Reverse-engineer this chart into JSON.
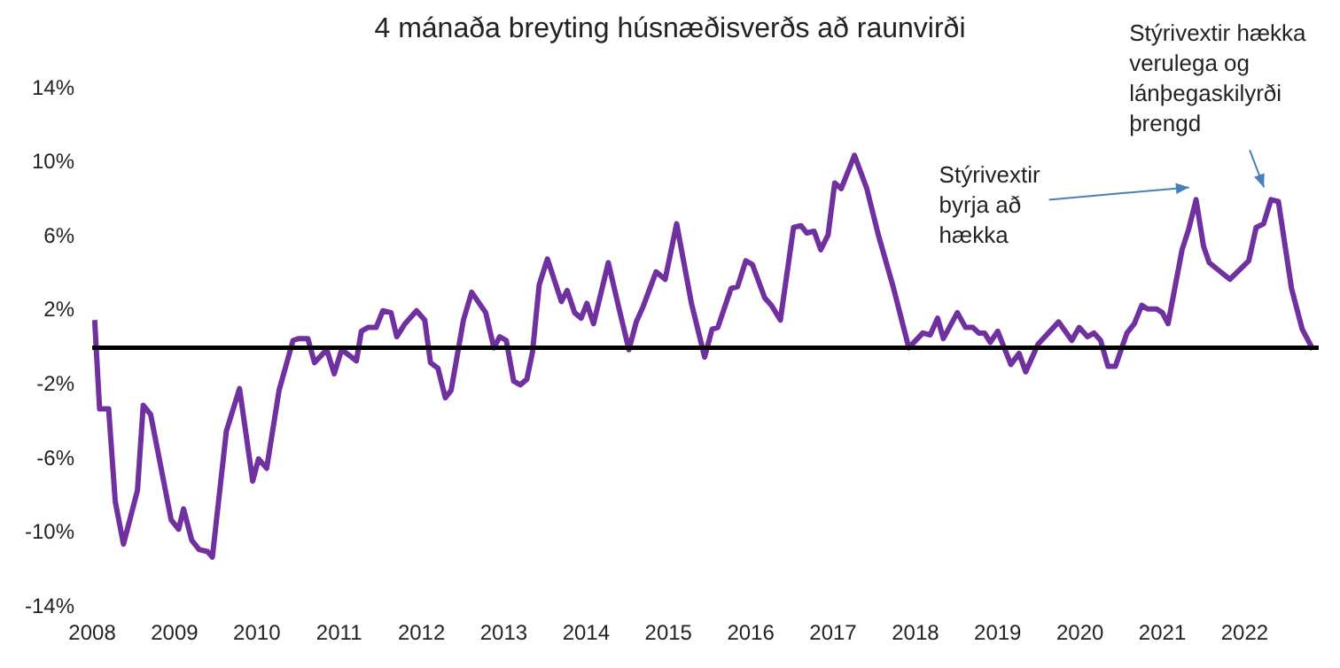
{
  "chart_data": {
    "type": "line",
    "title": "4 mánaða breyting húsnæðisverðs að raunvirði",
    "x": [
      2008.03,
      2008.09,
      2008.2,
      2008.28,
      2008.38,
      2008.55,
      2008.62,
      2008.71,
      2008.96,
      2009.05,
      2009.11,
      2009.21,
      2009.3,
      2009.4,
      2009.46,
      2009.63,
      2009.79,
      2009.95,
      2010.02,
      2010.12,
      2010.27,
      2010.44,
      2010.51,
      2010.62,
      2010.7,
      2010.85,
      2010.94,
      2011.03,
      2011.21,
      2011.27,
      2011.35,
      2011.45,
      2011.53,
      2011.63,
      2011.7,
      2011.8,
      2011.94,
      2012.04,
      2012.11,
      2012.2,
      2012.29,
      2012.36,
      2012.51,
      2012.61,
      2012.78,
      2012.88,
      2012.95,
      2013.03,
      2013.12,
      2013.2,
      2013.28,
      2013.35,
      2013.43,
      2013.53,
      2013.7,
      2013.77,
      2013.86,
      2013.94,
      2014.01,
      2014.09,
      2014.27,
      2014.38,
      2014.52,
      2014.61,
      2014.69,
      2014.85,
      2014.96,
      2015.1,
      2015.28,
      2015.44,
      2015.53,
      2015.6,
      2015.76,
      2015.84,
      2015.94,
      2016.02,
      2016.17,
      2016.25,
      2016.36,
      2016.52,
      2016.61,
      2016.68,
      2016.77,
      2016.85,
      2016.94,
      2017.02,
      2017.1,
      2017.26,
      2017.41,
      2017.55,
      2017.73,
      2017.92,
      2018.09,
      2018.18,
      2018.27,
      2018.34,
      2018.51,
      2018.61,
      2018.7,
      2018.77,
      2018.84,
      2018.91,
      2019.0,
      2019.16,
      2019.26,
      2019.34,
      2019.49,
      2019.74,
      2019.9,
      2019.99,
      2020.09,
      2020.17,
      2020.25,
      2020.34,
      2020.43,
      2020.57,
      2020.66,
      2020.75,
      2020.82,
      2020.93,
      2021.0,
      2021.07,
      2021.24,
      2021.32,
      2021.41,
      2021.5,
      2021.57,
      2021.82,
      2022.05,
      2022.14,
      2022.23,
      2022.32,
      2022.41,
      2022.57,
      2022.7,
      2022.83
    ],
    "series": [
      {
        "color": "#7030a0",
        "values": [
          1.5,
          -3.3,
          -3.3,
          -8.3,
          -10.6,
          -7.7,
          -3.1,
          -3.6,
          -9.3,
          -9.8,
          -8.7,
          -10.4,
          -10.9,
          -11.0,
          -11.3,
          -4.5,
          -2.2,
          -7.2,
          -6.0,
          -6.5,
          -2.3,
          0.4,
          0.5,
          0.5,
          -0.8,
          -0.1,
          -1.4,
          -0.1,
          -0.7,
          0.9,
          1.1,
          1.1,
          2.0,
          1.9,
          0.6,
          1.3,
          2.0,
          1.5,
          -0.8,
          -1.1,
          -2.7,
          -2.3,
          1.5,
          3.0,
          1.9,
          0.0,
          0.6,
          0.4,
          -1.8,
          -2.0,
          -1.7,
          -0.2,
          3.4,
          4.8,
          2.5,
          3.1,
          1.9,
          1.6,
          2.4,
          1.3,
          4.6,
          2.5,
          -0.1,
          1.4,
          2.2,
          4.1,
          3.7,
          6.7,
          2.4,
          -0.5,
          1.0,
          1.1,
          3.2,
          3.3,
          4.7,
          4.5,
          2.7,
          2.3,
          1.5,
          6.5,
          6.6,
          6.2,
          6.3,
          5.3,
          6.1,
          8.9,
          8.6,
          10.4,
          8.6,
          6.1,
          3.3,
          0.0,
          0.8,
          0.7,
          1.6,
          0.5,
          1.9,
          1.1,
          1.1,
          0.8,
          0.8,
          0.3,
          0.9,
          -0.9,
          -0.3,
          -1.3,
          0.2,
          1.4,
          0.4,
          1.1,
          0.6,
          0.8,
          0.4,
          -1.0,
          -1.0,
          0.8,
          1.3,
          2.3,
          2.1,
          2.1,
          1.9,
          1.3,
          5.3,
          6.4,
          8.0,
          5.5,
          4.6,
          3.7,
          4.7,
          6.5,
          6.7,
          8.0,
          7.9,
          3.2,
          1.0,
          -0.1
        ]
      }
    ],
    "xlim": [
      2008,
      2022.9
    ],
    "xticks": [
      2008,
      2009,
      2010,
      2011,
      2012,
      2013,
      2014,
      2015,
      2016,
      2017,
      2018,
      2019,
      2020,
      2021,
      2022
    ],
    "ylim": [
      -14,
      14
    ],
    "yticks": [
      {
        "value": -14,
        "label": "-14%"
      },
      {
        "value": -10,
        "label": "-10%"
      },
      {
        "value": -6,
        "label": "-6%"
      },
      {
        "value": -2,
        "label": "-2%"
      },
      {
        "value": 2,
        "label": "2%"
      },
      {
        "value": 6,
        "label": "6%"
      },
      {
        "value": 10,
        "label": "10%"
      },
      {
        "value": 14,
        "label": "14%"
      }
    ],
    "ref_lines": [
      {
        "axis": "y",
        "value": 0,
        "color": "#000000"
      }
    ],
    "annotations": [
      {
        "text": "Stýrivextir byrja að hækka",
        "x": 2021.41,
        "y": 8.0
      },
      {
        "text": "Stýrivextir hækka verulega og lánþegaskilyrði þrengd",
        "x": 2022.32,
        "y": 8.0
      }
    ],
    "grid": false,
    "legend": false,
    "marker": "none",
    "line_style": "solid"
  }
}
